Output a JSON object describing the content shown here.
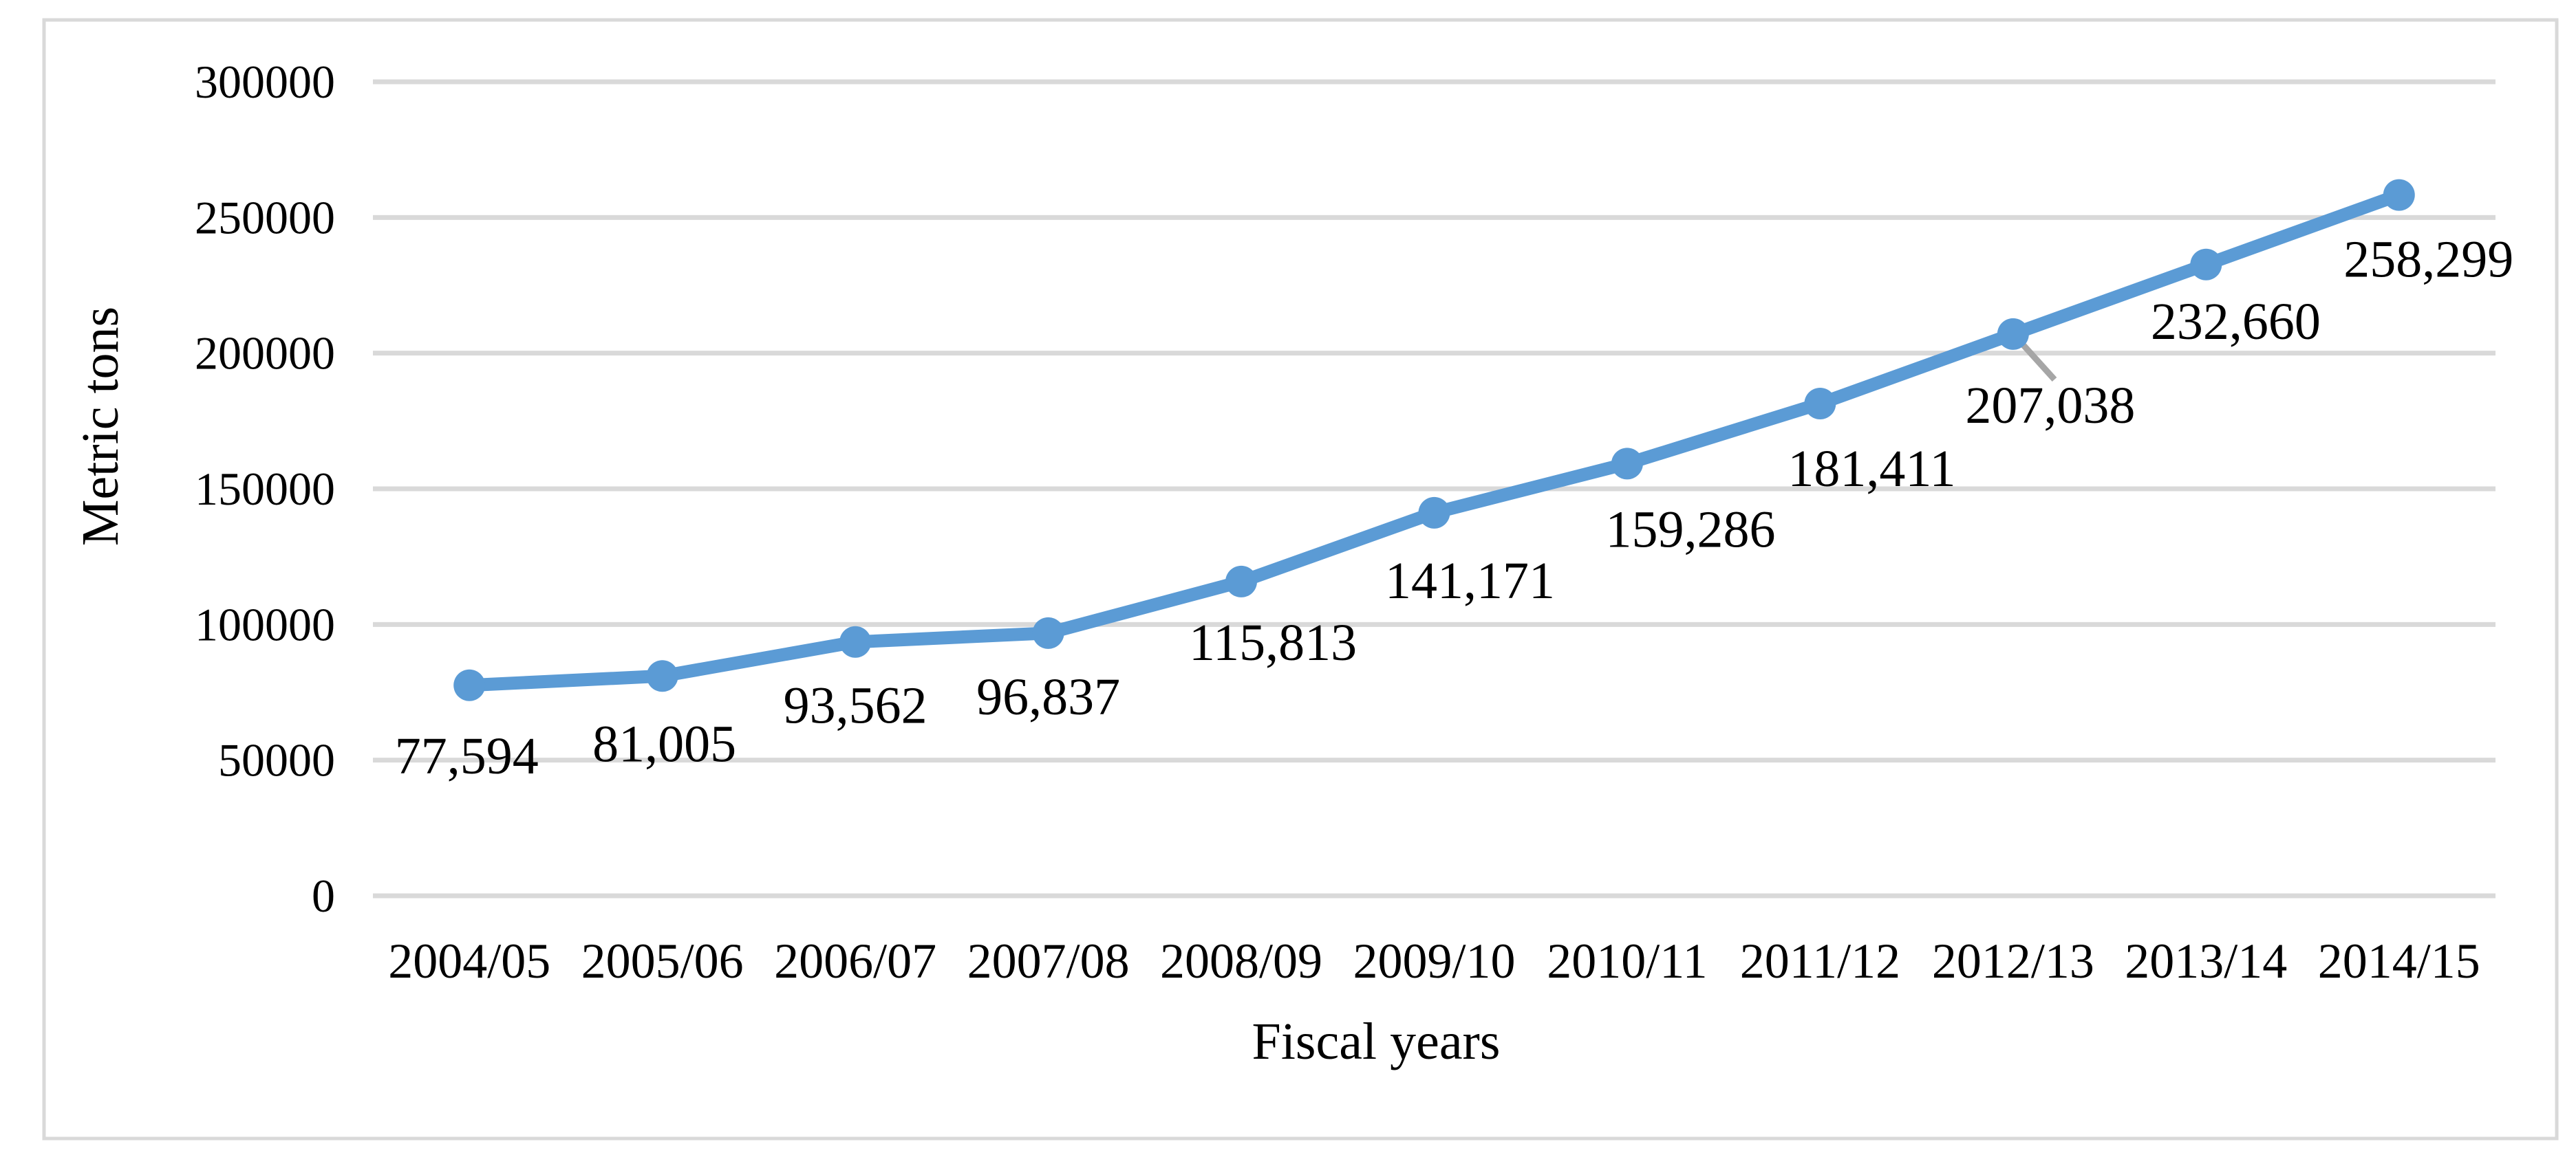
{
  "chart_data": {
    "type": "line",
    "title": "",
    "categories": [
      "2004/05",
      "2005/06",
      "2006/07",
      "2007/08",
      "2008/09",
      "2009/10",
      "2010/11",
      "2011/12",
      "2012/13",
      "2013/14",
      "2014/15"
    ],
    "series": [
      {
        "name": "Metric tons",
        "values": [
          77594,
          81005,
          93562,
          96837,
          115813,
          141171,
          159286,
          181411,
          207038,
          232660,
          258299
        ]
      }
    ],
    "data_labels": [
      "77,594",
      "81,005",
      "93,562",
      "96,837",
      "115,813",
      "141,171",
      "159,286",
      "181,411",
      "207,038",
      "232,660",
      "258,299"
    ],
    "xlabel": "Fiscal years",
    "ylabel": "Metric tons",
    "ylim": [
      0,
      300000
    ],
    "ytick_interval": 50000,
    "ytick_labels": [
      "0",
      "50000",
      "100000",
      "150000",
      "200000",
      "250000",
      "300000"
    ],
    "grid": "horizontal",
    "legend": "none",
    "marker": "filled-circle",
    "callout": {
      "category": "2012/13",
      "label": "207,038",
      "has_leader_line": true
    },
    "colors": {
      "series": "#5B9BD5",
      "gridline": "#D9D9D9",
      "frame_border": "#D9D9D9",
      "leader_line": "#A6A6A6",
      "text": "#000000",
      "background": "#FFFFFF"
    }
  }
}
